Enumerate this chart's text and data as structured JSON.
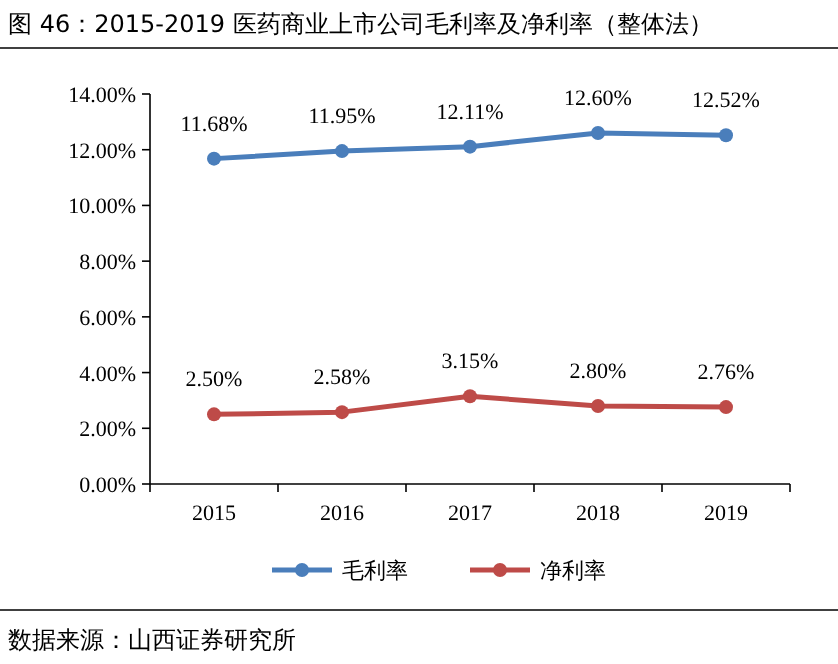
{
  "chart_data": {
    "type": "line",
    "title": "图 46：2015-2019 医药商业上市公司毛利率及净利率（整体法）",
    "annotations": [
      "数据来源：山西证券研究所"
    ],
    "categories": [
      "2015",
      "2016",
      "2017",
      "2018",
      "2019"
    ],
    "series": [
      {
        "name": "毛利率",
        "color": "#4a7ebb",
        "values": [
          11.68,
          11.95,
          12.11,
          12.6,
          12.52
        ],
        "value_labels": [
          "11.68%",
          "11.95%",
          "12.11%",
          "12.60%",
          "12.52%"
        ]
      },
      {
        "name": "净利率",
        "color": "#be4b48",
        "values": [
          2.5,
          2.58,
          3.15,
          2.8,
          2.76
        ],
        "value_labels": [
          "2.50%",
          "2.58%",
          "3.15%",
          "2.80%",
          "2.76%"
        ]
      }
    ],
    "ylim": [
      0,
      14
    ],
    "yticks": [
      {
        "value": 0,
        "label": "0.00%"
      },
      {
        "value": 2,
        "label": "2.00%"
      },
      {
        "value": 4,
        "label": "4.00%"
      },
      {
        "value": 6,
        "label": "6.00%"
      },
      {
        "value": 8,
        "label": "8.00%"
      },
      {
        "value": 10,
        "label": "10.00%"
      },
      {
        "value": 12,
        "label": "12.00%"
      },
      {
        "value": 14,
        "label": "14.00%"
      }
    ],
    "marker": "circle",
    "legend": "bottom",
    "grid": false
  }
}
